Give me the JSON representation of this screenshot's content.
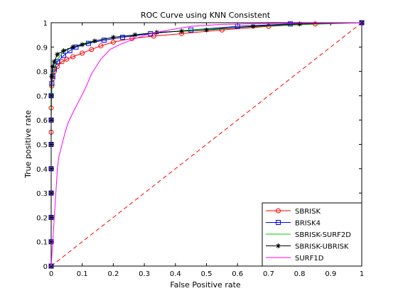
{
  "chart_data": {
    "type": "line",
    "title": "ROC Curve using KNN Consistent",
    "xlabel": "False Positive rate",
    "ylabel": "True positive rate",
    "xlim": [
      0,
      1
    ],
    "ylim": [
      0,
      1
    ],
    "xticks": [
      "0",
      "0.1",
      "0.2",
      "0.3",
      "0.4",
      "0.5",
      "0.6",
      "0.7",
      "0.8",
      "0.9",
      "1"
    ],
    "yticks": [
      "0",
      "0.1",
      "0.2",
      "0.3",
      "0.4",
      "0.5",
      "0.6",
      "0.7",
      "0.8",
      "0.9",
      "1"
    ],
    "grid": false,
    "legend_position": "bottom-right",
    "reference_line": {
      "style": "dashed",
      "color": "#ff0000",
      "points": [
        [
          0,
          0
        ],
        [
          1,
          1
        ]
      ]
    },
    "series": [
      {
        "name": "SBRISK",
        "color": "#ff0000",
        "marker": "circle",
        "points": [
          [
            0,
            0
          ],
          [
            0,
            0.1
          ],
          [
            0,
            0.2
          ],
          [
            0,
            0.3
          ],
          [
            0,
            0.4
          ],
          [
            0,
            0.5
          ],
          [
            0,
            0.55
          ],
          [
            0,
            0.6
          ],
          [
            0,
            0.65
          ],
          [
            0,
            0.7
          ],
          [
            0.002,
            0.74
          ],
          [
            0.005,
            0.77
          ],
          [
            0.01,
            0.8
          ],
          [
            0.02,
            0.82
          ],
          [
            0.035,
            0.84
          ],
          [
            0.05,
            0.85
          ],
          [
            0.07,
            0.86
          ],
          [
            0.1,
            0.875
          ],
          [
            0.13,
            0.89
          ],
          [
            0.16,
            0.905
          ],
          [
            0.2,
            0.92
          ],
          [
            0.26,
            0.935
          ],
          [
            0.33,
            0.945
          ],
          [
            0.42,
            0.955
          ],
          [
            0.55,
            0.97
          ],
          [
            0.7,
            0.985
          ],
          [
            0.85,
            0.995
          ],
          [
            1,
            1
          ]
        ]
      },
      {
        "name": "BRISK4",
        "color": "#0000ff",
        "marker": "square",
        "points": [
          [
            0,
            0
          ],
          [
            0,
            0.1
          ],
          [
            0,
            0.2
          ],
          [
            0,
            0.3
          ],
          [
            0,
            0.4
          ],
          [
            0,
            0.5
          ],
          [
            0,
            0.6
          ],
          [
            0,
            0.7
          ],
          [
            0.002,
            0.75
          ],
          [
            0.005,
            0.78
          ],
          [
            0.01,
            0.81
          ],
          [
            0.02,
            0.84
          ],
          [
            0.04,
            0.865
          ],
          [
            0.06,
            0.885
          ],
          [
            0.08,
            0.9
          ],
          [
            0.12,
            0.915
          ],
          [
            0.17,
            0.928
          ],
          [
            0.23,
            0.94
          ],
          [
            0.32,
            0.955
          ],
          [
            0.45,
            0.97
          ],
          [
            0.6,
            0.985
          ],
          [
            0.77,
            0.995
          ],
          [
            1,
            1
          ]
        ]
      },
      {
        "name": "SBRISK-SURF2D",
        "color": "#00cc00",
        "marker": "none",
        "points": [
          [
            0,
            0
          ],
          [
            0,
            0.3
          ],
          [
            0,
            0.6
          ],
          [
            0.003,
            0.76
          ],
          [
            0.01,
            0.81
          ],
          [
            0.02,
            0.85
          ],
          [
            0.04,
            0.88
          ],
          [
            0.07,
            0.9
          ],
          [
            0.12,
            0.92
          ],
          [
            0.2,
            0.94
          ],
          [
            0.3,
            0.955
          ],
          [
            0.45,
            0.97
          ],
          [
            0.62,
            0.982
          ],
          [
            0.8,
            0.992
          ],
          [
            1,
            1
          ]
        ]
      },
      {
        "name": "SBRISK-UBRISK",
        "color": "#000000",
        "marker": "star",
        "points": [
          [
            0,
            0
          ],
          [
            0,
            0.1
          ],
          [
            0,
            0.2
          ],
          [
            0,
            0.3
          ],
          [
            0,
            0.4
          ],
          [
            0,
            0.5
          ],
          [
            0,
            0.6
          ],
          [
            0,
            0.7
          ],
          [
            0.002,
            0.78
          ],
          [
            0.005,
            0.82
          ],
          [
            0.01,
            0.84
          ],
          [
            0.02,
            0.87
          ],
          [
            0.04,
            0.885
          ],
          [
            0.07,
            0.9
          ],
          [
            0.1,
            0.91
          ],
          [
            0.14,
            0.925
          ],
          [
            0.2,
            0.94
          ],
          [
            0.27,
            0.95
          ],
          [
            0.34,
            0.96
          ],
          [
            0.42,
            0.965
          ],
          [
            0.5,
            0.97
          ],
          [
            0.65,
            0.985
          ],
          [
            0.8,
            0.995
          ],
          [
            1,
            1
          ]
        ]
      },
      {
        "name": "SURF1D",
        "color": "#ff00ff",
        "marker": "none",
        "points": [
          [
            0,
            0
          ],
          [
            0.005,
            0.1
          ],
          [
            0.01,
            0.2
          ],
          [
            0.015,
            0.3
          ],
          [
            0.02,
            0.4
          ],
          [
            0.025,
            0.45
          ],
          [
            0.035,
            0.5
          ],
          [
            0.045,
            0.55
          ],
          [
            0.055,
            0.59
          ],
          [
            0.07,
            0.63
          ],
          [
            0.09,
            0.68
          ],
          [
            0.11,
            0.73
          ],
          [
            0.13,
            0.79
          ],
          [
            0.16,
            0.85
          ],
          [
            0.19,
            0.89
          ],
          [
            0.22,
            0.91
          ],
          [
            0.27,
            0.935
          ],
          [
            0.32,
            0.955
          ],
          [
            0.38,
            0.97
          ],
          [
            0.45,
            0.985
          ],
          [
            0.55,
            0.993
          ],
          [
            0.7,
            0.997
          ],
          [
            1,
            1
          ]
        ]
      }
    ]
  }
}
